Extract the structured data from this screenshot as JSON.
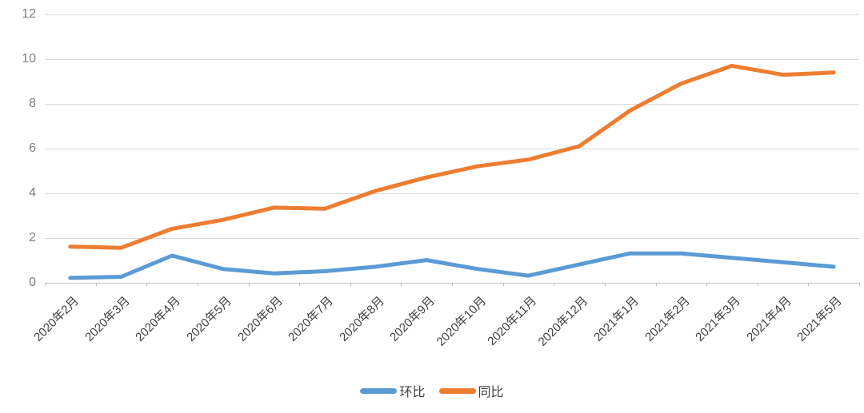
{
  "chart_data": {
    "type": "line",
    "categories": [
      "2020年2月",
      "2020年3月",
      "2020年4月",
      "2020年5月",
      "2020年6月",
      "2020年7月",
      "2020年8月",
      "2020年9月",
      "2020年10月",
      "2020年11月",
      "2020年12月",
      "2021年1月",
      "2021年2月",
      "2021年3月",
      "2021年4月",
      "2021年5月"
    ],
    "series": [
      {
        "name": "环比",
        "color": "#5B9BD5",
        "values": [
          0.2,
          0.25,
          1.2,
          0.6,
          0.4,
          0.5,
          0.7,
          1.0,
          0.6,
          0.3,
          0.8,
          1.3,
          1.3,
          1.1,
          0.9,
          0.7
        ]
      },
      {
        "name": "同比",
        "color": "#ED7D31",
        "values": [
          1.6,
          1.55,
          2.4,
          2.8,
          3.35,
          3.3,
          4.1,
          4.7,
          5.2,
          5.5,
          6.1,
          7.7,
          8.9,
          9.7,
          9.3,
          9.4
        ]
      }
    ],
    "ylim": [
      0,
      12
    ],
    "y_ticks": [
      0,
      2,
      4,
      6,
      8,
      10,
      12
    ],
    "grid": true,
    "legend_position": "bottom"
  },
  "legend": {
    "items": [
      {
        "label": "环比",
        "color": "#5B9BD5"
      },
      {
        "label": "同比",
        "color": "#ED7D31"
      }
    ]
  },
  "colors": {
    "series_huanbi": "#5B9BD5",
    "series_tongbi": "#ED7D31",
    "gridline": "#D9D9D9",
    "axis_line": "#C6C6C6",
    "y_label_text": "#7F7F7F",
    "x_label_text": "#3F3F3F",
    "legend_text": "#404040",
    "background": "#FFFFFF"
  }
}
